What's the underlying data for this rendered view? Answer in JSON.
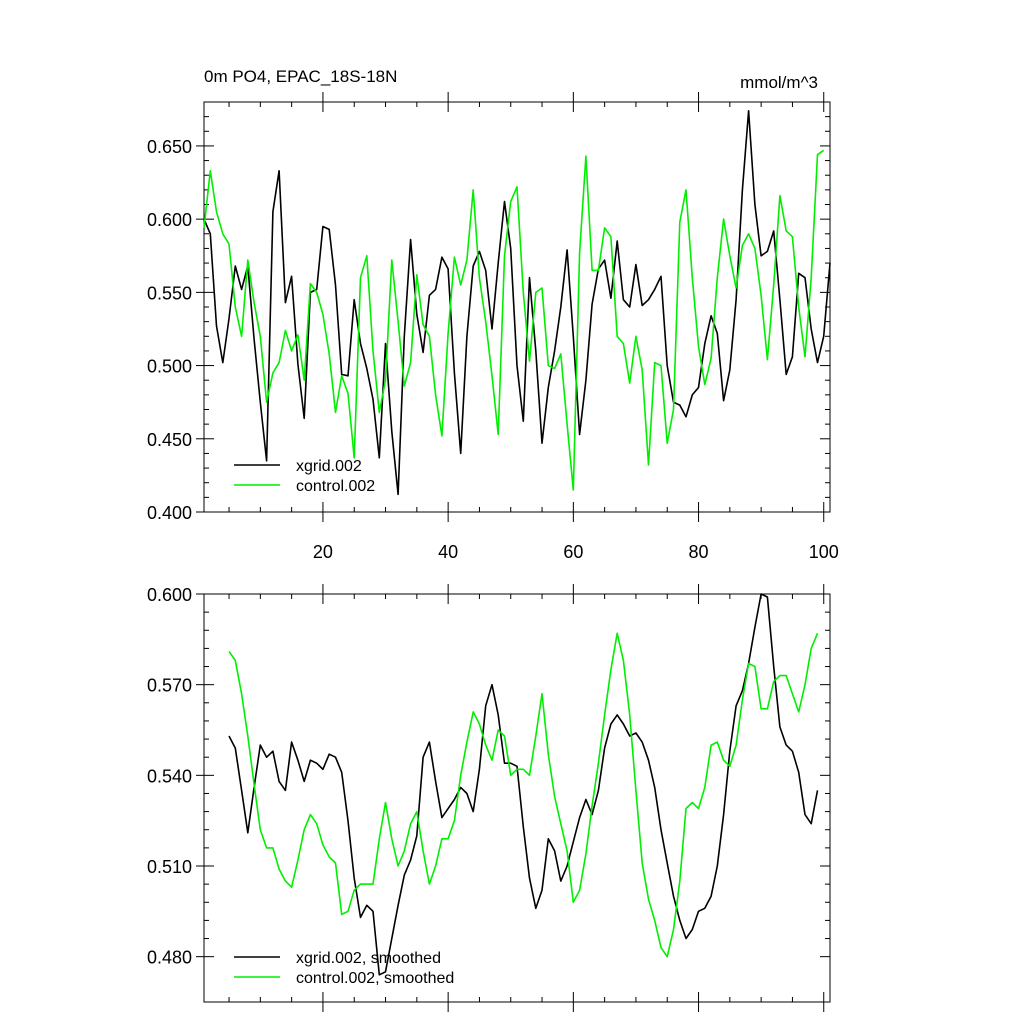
{
  "chart_data": [
    {
      "type": "line",
      "title": "0m PO4, EPAC_18S-18N",
      "units": "mmol/m^3",
      "xlim": [
        1,
        101
      ],
      "ylim": [
        0.4,
        0.68
      ],
      "xticks": [
        20,
        40,
        60,
        80,
        100
      ],
      "xtick_labels": [
        "20",
        "40",
        "60",
        "80",
        "100"
      ],
      "yticks": [
        0.4,
        0.45,
        0.5,
        0.55,
        0.6,
        0.65
      ],
      "ytick_labels": [
        "0.400",
        "0.450",
        "0.500",
        "0.550",
        "0.600",
        "0.650"
      ],
      "legend_position": "lower-left",
      "series": [
        {
          "name": "xgrid.002",
          "color": "#000000",
          "x_start": 1,
          "values": [
            0.6,
            0.59,
            0.527,
            0.502,
            0.532,
            0.568,
            0.552,
            0.568,
            0.518,
            0.475,
            0.435,
            0.605,
            0.633,
            0.543,
            0.561,
            0.501,
            0.464,
            0.55,
            0.552,
            0.595,
            0.593,
            0.555,
            0.494,
            0.493,
            0.545,
            0.515,
            0.498,
            0.477,
            0.437,
            0.515,
            0.455,
            0.412,
            0.52,
            0.586,
            0.535,
            0.509,
            0.548,
            0.552,
            0.574,
            0.566,
            0.495,
            0.44,
            0.52,
            0.568,
            0.578,
            0.565,
            0.525,
            0.57,
            0.612,
            0.58,
            0.5,
            0.462,
            0.56,
            0.51,
            0.447,
            0.485,
            0.51,
            0.54,
            0.579,
            0.52,
            0.453,
            0.49,
            0.542,
            0.566,
            0.572,
            0.546,
            0.585,
            0.545,
            0.54,
            0.569,
            0.541,
            0.545,
            0.552,
            0.561,
            0.5,
            0.475,
            0.473,
            0.465,
            0.48,
            0.485,
            0.515,
            0.534,
            0.522,
            0.476,
            0.497,
            0.545,
            0.62,
            0.674,
            0.61,
            0.575,
            0.578,
            0.592,
            0.545,
            0.494,
            0.506,
            0.563,
            0.56,
            0.525,
            0.502,
            0.52,
            0.57
          ]
        },
        {
          "name": "control.002",
          "color": "#00ee00",
          "x_start": 1,
          "values": [
            0.594,
            0.633,
            0.605,
            0.59,
            0.583,
            0.54,
            0.52,
            0.572,
            0.543,
            0.52,
            0.475,
            0.495,
            0.502,
            0.524,
            0.51,
            0.521,
            0.49,
            0.556,
            0.55,
            0.535,
            0.508,
            0.468,
            0.493,
            0.481,
            0.437,
            0.56,
            0.575,
            0.51,
            0.468,
            0.49,
            0.572,
            0.53,
            0.486,
            0.502,
            0.562,
            0.528,
            0.52,
            0.48,
            0.452,
            0.522,
            0.574,
            0.555,
            0.572,
            0.62,
            0.56,
            0.53,
            0.493,
            0.453,
            0.575,
            0.612,
            0.622,
            0.55,
            0.503,
            0.55,
            0.553,
            0.5,
            0.498,
            0.508,
            0.46,
            0.415,
            0.577,
            0.643,
            0.565,
            0.565,
            0.594,
            0.588,
            0.52,
            0.515,
            0.488,
            0.52,
            0.497,
            0.432,
            0.502,
            0.5,
            0.447,
            0.47,
            0.598,
            0.62,
            0.56,
            0.513,
            0.487,
            0.505,
            0.56,
            0.6,
            0.575,
            0.553,
            0.582,
            0.59,
            0.58,
            0.548,
            0.504,
            0.555,
            0.616,
            0.592,
            0.588,
            0.54,
            0.506,
            0.56,
            0.644,
            0.647
          ]
        }
      ]
    },
    {
      "type": "line",
      "title": "",
      "xlim": [
        1,
        101
      ],
      "ylim": [
        0.465,
        0.6
      ],
      "yticks": [
        0.48,
        0.51,
        0.54,
        0.57,
        0.6
      ],
      "ytick_labels": [
        "0.480",
        "0.510",
        "0.540",
        "0.570",
        "0.600"
      ],
      "legend_position": "lower-left",
      "series": [
        {
          "name": "xgrid.002, smoothed",
          "color": "#000000",
          "x_start": 5,
          "values": [
            0.553,
            0.549,
            0.535,
            0.521,
            0.536,
            0.55,
            0.546,
            0.548,
            0.538,
            0.535,
            0.551,
            0.545,
            0.538,
            0.545,
            0.544,
            0.542,
            0.547,
            0.546,
            0.541,
            0.525,
            0.506,
            0.493,
            0.497,
            0.495,
            0.474,
            0.475,
            0.486,
            0.497,
            0.507,
            0.512,
            0.52,
            0.546,
            0.551,
            0.538,
            0.526,
            0.529,
            0.532,
            0.536,
            0.534,
            0.528,
            0.542,
            0.563,
            0.57,
            0.56,
            0.544,
            0.544,
            0.543,
            0.523,
            0.506,
            0.496,
            0.502,
            0.519,
            0.515,
            0.505,
            0.51,
            0.518,
            0.526,
            0.532,
            0.527,
            0.535,
            0.549,
            0.557,
            0.56,
            0.557,
            0.553,
            0.554,
            0.551,
            0.545,
            0.536,
            0.522,
            0.511,
            0.5,
            0.492,
            0.486,
            0.489,
            0.495,
            0.496,
            0.5,
            0.51,
            0.527,
            0.548,
            0.563,
            0.568,
            0.577,
            0.589,
            0.6,
            0.599,
            0.576,
            0.556,
            0.55,
            0.548,
            0.541,
            0.527,
            0.524,
            0.535
          ]
        },
        {
          "name": "control.002, smoothed",
          "color": "#00ee00",
          "x_start": 5,
          "values": [
            0.581,
            0.578,
            0.567,
            0.553,
            0.537,
            0.522,
            0.516,
            0.516,
            0.509,
            0.505,
            0.503,
            0.512,
            0.522,
            0.527,
            0.524,
            0.517,
            0.513,
            0.511,
            0.494,
            0.495,
            0.502,
            0.504,
            0.504,
            0.504,
            0.519,
            0.531,
            0.519,
            0.51,
            0.515,
            0.524,
            0.528,
            0.515,
            0.504,
            0.51,
            0.519,
            0.519,
            0.525,
            0.54,
            0.551,
            0.561,
            0.557,
            0.55,
            0.545,
            0.555,
            0.553,
            0.54,
            0.542,
            0.542,
            0.54,
            0.553,
            0.567,
            0.547,
            0.533,
            0.524,
            0.515,
            0.498,
            0.502,
            0.514,
            0.53,
            0.544,
            0.56,
            0.575,
            0.587,
            0.578,
            0.56,
            0.535,
            0.511,
            0.499,
            0.492,
            0.483,
            0.48,
            0.489,
            0.505,
            0.529,
            0.531,
            0.529,
            0.536,
            0.55,
            0.551,
            0.545,
            0.543,
            0.55,
            0.565,
            0.577,
            0.576,
            0.562,
            0.562,
            0.571,
            0.573,
            0.573,
            0.567,
            0.561,
            0.57,
            0.582,
            0.587
          ]
        }
      ]
    }
  ]
}
